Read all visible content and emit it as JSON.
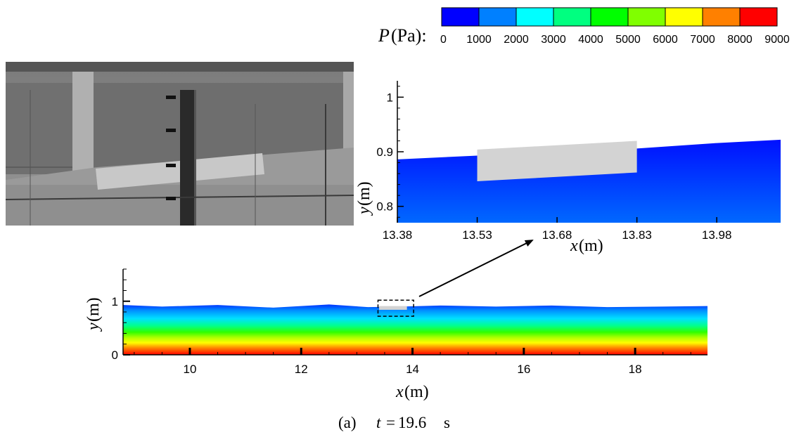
{
  "colorbar": {
    "symbol": "P",
    "unit_label": "(Pa):",
    "ticks": [
      "0",
      "1000",
      "2000",
      "3000",
      "4000",
      "5000",
      "6000",
      "7000",
      "8000",
      "9000"
    ],
    "colors": [
      "#0000ff",
      "#0080ff",
      "#00ffff",
      "#00ff80",
      "#00ff00",
      "#80ff00",
      "#ffff00",
      "#ff8000",
      "#ff0000"
    ]
  },
  "caption": {
    "prefix": "(a)",
    "var": "t",
    "eq": "=",
    "value": "19.6",
    "unit": "s"
  },
  "chart_data": [
    {
      "type": "heatmap",
      "id": "zoom",
      "xlabel_var": "x",
      "xlabel_unit": "(m)",
      "ylabel_var": "y",
      "ylabel_unit": "(m)",
      "xlim": [
        13.38,
        14.1
      ],
      "ylim": [
        0.77,
        1.03
      ],
      "xticks": [
        "13.38",
        "13.53",
        "13.68",
        "13.83",
        "13.98"
      ],
      "yticks": [
        "0.8",
        "0.9",
        "1"
      ],
      "free_surface": [
        [
          13.38,
          0.886
        ],
        [
          13.53,
          0.893
        ],
        [
          13.68,
          0.9
        ],
        [
          13.83,
          0.906
        ],
        [
          13.98,
          0.916
        ],
        [
          14.1,
          0.922
        ]
      ],
      "body": [
        [
          13.53,
          0.904
        ],
        [
          13.83,
          0.92
        ],
        [
          13.83,
          0.862
        ],
        [
          13.53,
          0.846
        ]
      ]
    },
    {
      "type": "heatmap",
      "id": "main",
      "xlabel_var": "x",
      "xlabel_unit": "(m)",
      "ylabel_var": "y",
      "ylabel_unit": "(m)",
      "xlim": [
        8.8,
        19.3
      ],
      "ylim": [
        0,
        1.6
      ],
      "xticks": [
        "10",
        "12",
        "14",
        "16",
        "18"
      ],
      "yticks": [
        "0",
        "1"
      ],
      "surface_x": [
        8.8,
        9.5,
        10.5,
        11.5,
        12.5,
        13.2,
        13.8,
        14.5,
        15.5,
        16.5,
        17.5,
        18.5,
        19.3
      ],
      "surface_y": [
        0.93,
        0.9,
        0.93,
        0.88,
        0.94,
        0.89,
        0.9,
        0.92,
        0.9,
        0.92,
        0.89,
        0.9,
        0.91
      ],
      "body_x": [
        13.4,
        13.9
      ],
      "body_y": [
        0.84,
        0.91
      ],
      "zoom_box_x": [
        13.38,
        14.02
      ],
      "zoom_box_y": [
        0.72,
        1.02
      ]
    }
  ]
}
